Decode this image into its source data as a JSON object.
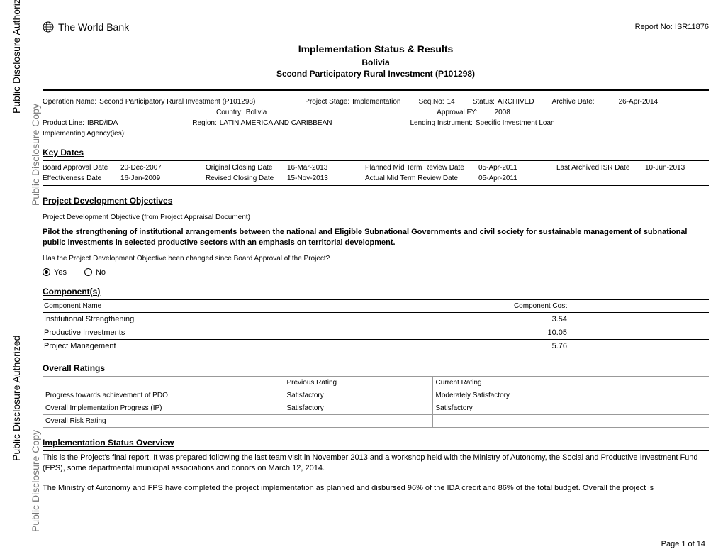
{
  "watermarks": {
    "outer": "Public Disclosure Authorized",
    "inner": "Public Disclosure Copy"
  },
  "header": {
    "bank": "The World Bank",
    "report_label": "Report No:",
    "report_no": "ISR11876"
  },
  "title": {
    "main": "Implementation Status & Results",
    "country": "Bolivia",
    "project": "Second Participatory Rural Investment (P101298)"
  },
  "meta": {
    "op_name_label": "Operation Name:",
    "op_name": "Second Participatory Rural Investment (P101298)",
    "stage_label": "Project Stage:",
    "stage": "Implementation",
    "seq_label": "Seq.No:",
    "seq": "14",
    "status_label": "Status:",
    "status": "ARCHIVED",
    "archive_label": "Archive Date:",
    "archive": "26-Apr-2014",
    "country_label": "Country:",
    "country": "Bolivia",
    "approval_label": "Approval FY:",
    "approval": "2008",
    "product_label": "Product Line:",
    "product": "IBRD/IDA",
    "region_label": "Region:",
    "region": "LATIN AMERICA AND CARIBBEAN",
    "instrument_label": "Lending Instrument:",
    "instrument": "Specific Investment Loan",
    "agency_label": "Implementing Agency(ies):"
  },
  "key_dates": {
    "title": "Key Dates",
    "rows": [
      {
        "l1": "Board Approval Date",
        "v1": "20-Dec-2007",
        "l2": "Original Closing Date",
        "v2": "16-Mar-2013",
        "l3": "Planned Mid Term Review Date",
        "v3": "05-Apr-2011",
        "l4": "Last Archived ISR Date",
        "v4": "10-Jun-2013"
      },
      {
        "l1": "Effectiveness Date",
        "v1": "16-Jan-2009",
        "l2": "Revised Closing Date",
        "v2": "15-Nov-2013",
        "l3": "Actual Mid Term Review Date",
        "v3": "05-Apr-2011",
        "l4": "",
        "v4": ""
      }
    ]
  },
  "pdo": {
    "title": "Project Development Objectives",
    "sub": "Project Development Objective (from Project Appraisal Document)",
    "text": "Pilot the strengthening of institutional arrangements between the national and Eligible Subnational Governments and civil society for sustainable management of subnational public investments in selected productive sectors with an emphasis on territorial development.",
    "question": "Has the Project Development Objective been changed since Board Approval of the Project?",
    "yes": "Yes",
    "no": "No",
    "selected": "yes"
  },
  "components": {
    "title": "Component(s)",
    "col1": "Component Name",
    "col2": "Component Cost",
    "rows": [
      {
        "name": "Institutional Strengthening",
        "cost": "3.54"
      },
      {
        "name": "Productive Investments",
        "cost": "10.05"
      },
      {
        "name": "Project Management",
        "cost": "5.76"
      }
    ]
  },
  "ratings": {
    "title": "Overall Ratings",
    "col_prev": "Previous Rating",
    "col_curr": "Current Rating",
    "rows": [
      {
        "label": "Progress towards achievement of PDO",
        "prev": "Satisfactory",
        "curr": "Moderately Satisfactory"
      },
      {
        "label": "Overall Implementation Progress (IP)",
        "prev": "Satisfactory",
        "curr": "Satisfactory"
      },
      {
        "label": "Overall Risk Rating",
        "prev": "",
        "curr": ""
      }
    ]
  },
  "overview": {
    "title": "Implementation Status Overview",
    "p1": "This is the Project's final report. It was prepared following the last team visit in November 2013 and a workshop held with the Ministry of Autonomy, the Social and Productive Investment Fund (FPS), some departmental municipal associations and donors on March 12, 2014.",
    "p2": "The Ministry of Autonomy and FPS have completed the project implementation as planned and disbursed 96% of the IDA credit and 86% of the total budget. Overall the project is"
  },
  "page_num": "Page 1 of 14"
}
